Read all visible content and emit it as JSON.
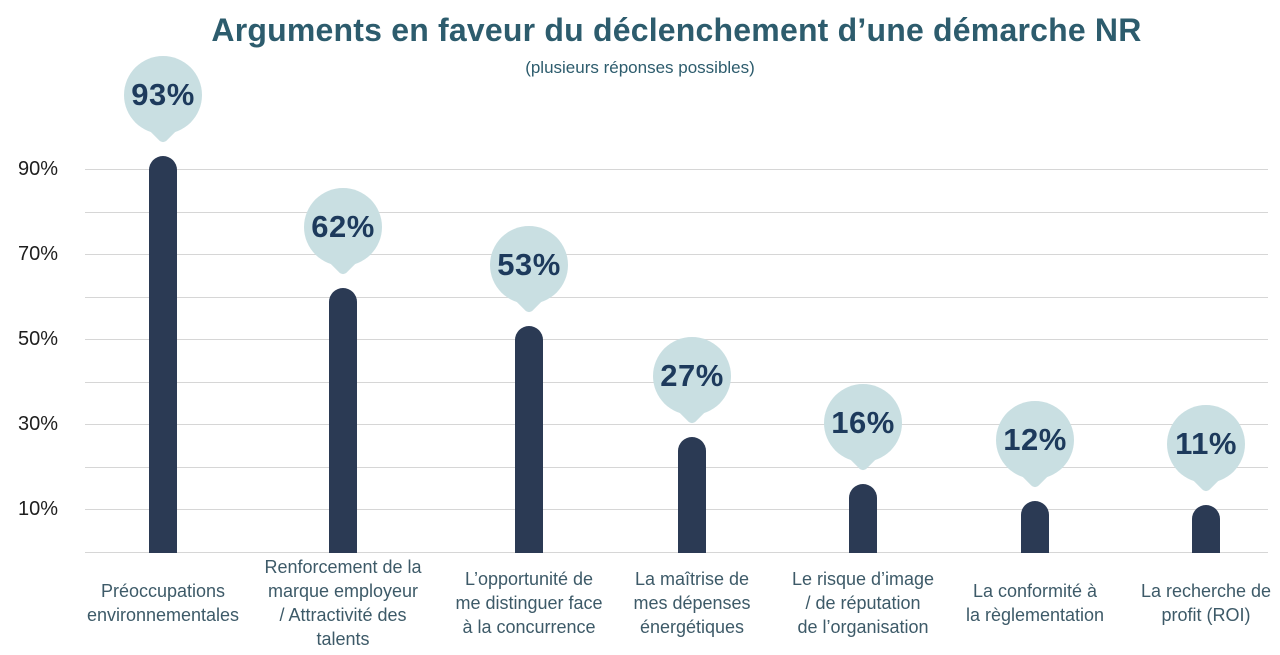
{
  "chart_data": {
    "type": "bar",
    "title": "Arguments en faveur du déclenchement d’une démarche NR",
    "subtitle": "(plusieurs réponses possibles)",
    "categories": [
      "Préoccupations environnementales",
      "Renforcement de la marque employeur / Attractivité des talents",
      "L’opportunité de me distinguer face à la concurrence",
      "La maîtrise de mes dépenses énergétiques",
      "Le risque d’image / de réputation de l’organisation",
      "La conformité à la règlementation",
      "La recherche de profit (ROI)"
    ],
    "category_lines": [
      [
        "Préoccupations",
        "environnementales"
      ],
      [
        "Renforcement de la",
        "marque employeur",
        "/ Attractivité des",
        "talents"
      ],
      [
        "L’opportunité de",
        "me distinguer face",
        "à la concurrence"
      ],
      [
        "La maîtrise de",
        "mes dépenses",
        "énergétiques"
      ],
      [
        "Le risque d’image",
        "/ de réputation",
        "de l’organisation"
      ],
      [
        "La conformité à",
        "la règlementation"
      ],
      [
        "La recherche de",
        "profit (ROI)"
      ]
    ],
    "values": [
      93,
      62,
      53,
      27,
      16,
      12,
      11
    ],
    "value_labels": [
      "93%",
      "62%",
      "53%",
      "27%",
      "16%",
      "12%",
      "11%"
    ],
    "y_axis": {
      "tick_labels": [
        "90%",
        "70%",
        "50%",
        "30%",
        "10%"
      ],
      "tick_values": [
        90,
        70,
        50,
        30,
        10
      ],
      "min": 0,
      "max": 100,
      "gridline_step": 10
    },
    "grid": "horizontal",
    "legend": "none",
    "colors": {
      "bar": "#2b3a54",
      "balloon_fill": "#c9dfe2",
      "balloon_text": "#1d3a5c",
      "title_text": "#2d5c6d",
      "category_text": "#3d5a68",
      "axis_text": "#1e1e1e",
      "gridline": "#d6d6d6",
      "background": "#ffffff"
    }
  }
}
